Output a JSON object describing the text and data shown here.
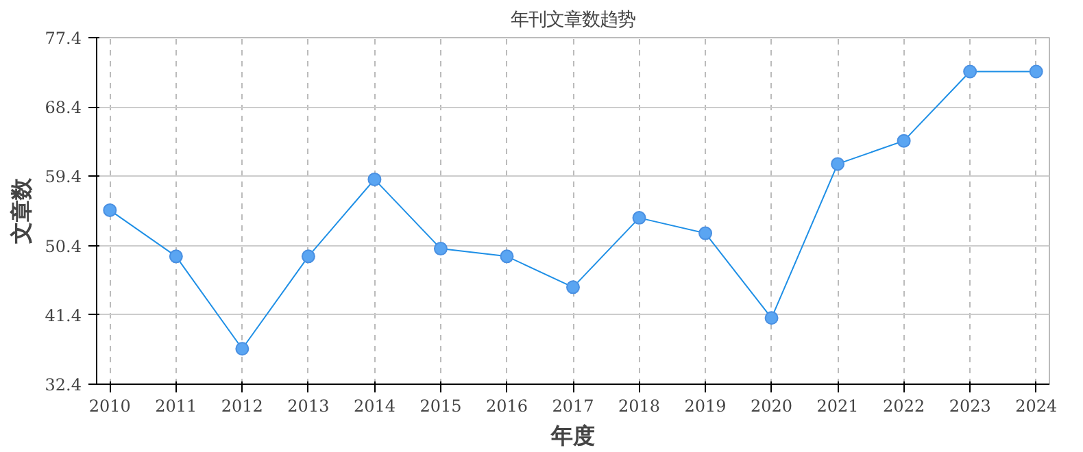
{
  "chart_data": {
    "type": "line",
    "title": "年刊文章数趋势",
    "xlabel": "年度",
    "ylabel": "文章数",
    "categories": [
      "2010",
      "2011",
      "2012",
      "2013",
      "2014",
      "2015",
      "2016",
      "2017",
      "2018",
      "2019",
      "2020",
      "2021",
      "2022",
      "2023",
      "2024"
    ],
    "series": [
      {
        "color": "#1e8fe6",
        "values": [
          55,
          49,
          37,
          49,
          59,
          50,
          49,
          45,
          54,
          52,
          41,
          61,
          64,
          73,
          73
        ]
      }
    ],
    "ylim": [
      32.4,
      77.4
    ],
    "yticks": [
      32.4,
      41.4,
      50.4,
      59.4,
      68.4,
      77.4
    ],
    "grid": true,
    "marker": "circle",
    "line_style": "solid"
  }
}
